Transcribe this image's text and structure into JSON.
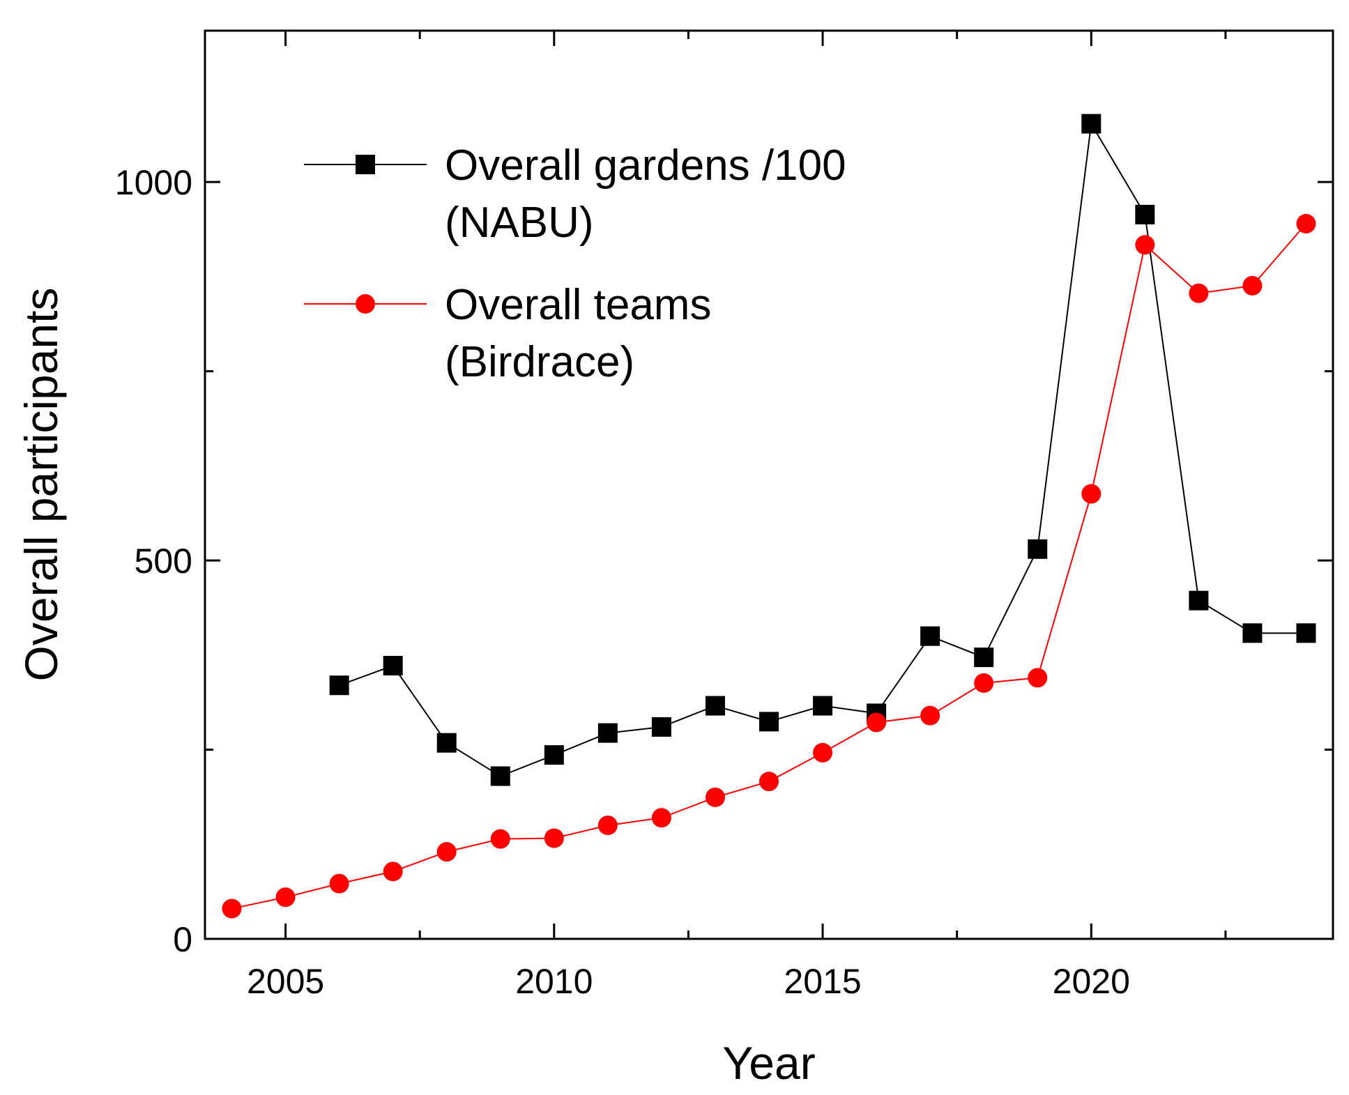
{
  "chart_data": {
    "type": "line",
    "xlabel": "Year",
    "ylabel": "Overall participants",
    "xlim": [
      2003.5,
      2024.5
    ],
    "ylim": [
      0,
      1200
    ],
    "x_major_ticks": [
      2005,
      2010,
      2015,
      2020
    ],
    "x_minor_ticks": [
      2007.5,
      2012.5,
      2017.5,
      2022.5
    ],
    "y_major_ticks": [
      0,
      500,
      1000
    ],
    "y_minor_ticks": [
      250,
      750
    ],
    "grid": false,
    "legend_position": "top-left",
    "series": [
      {
        "name_lines": [
          "Overall gardens /100",
          "(NABU)"
        ],
        "color": "#000000",
        "marker": "square",
        "points": [
          {
            "x": 2006,
            "y": 335
          },
          {
            "x": 2007,
            "y": 361
          },
          {
            "x": 2008,
            "y": 259
          },
          {
            "x": 2009,
            "y": 215
          },
          {
            "x": 2010,
            "y": 243
          },
          {
            "x": 2011,
            "y": 272
          },
          {
            "x": 2012,
            "y": 280
          },
          {
            "x": 2013,
            "y": 308
          },
          {
            "x": 2014,
            "y": 287
          },
          {
            "x": 2015,
            "y": 308
          },
          {
            "x": 2016,
            "y": 298
          },
          {
            "x": 2017,
            "y": 400
          },
          {
            "x": 2018,
            "y": 372
          },
          {
            "x": 2019,
            "y": 515
          },
          {
            "x": 2020,
            "y": 1077
          },
          {
            "x": 2021,
            "y": 957
          },
          {
            "x": 2022,
            "y": 447
          },
          {
            "x": 2023,
            "y": 404
          },
          {
            "x": 2024,
            "y": 404
          }
        ]
      },
      {
        "name_lines": [
          "Overall teams",
          "(Birdrace)"
        ],
        "color": "#ff0000",
        "marker": "circle",
        "points": [
          {
            "x": 2004,
            "y": 40
          },
          {
            "x": 2005,
            "y": 55
          },
          {
            "x": 2006,
            "y": 73
          },
          {
            "x": 2007,
            "y": 89
          },
          {
            "x": 2008,
            "y": 115
          },
          {
            "x": 2009,
            "y": 132
          },
          {
            "x": 2010,
            "y": 133
          },
          {
            "x": 2011,
            "y": 150
          },
          {
            "x": 2012,
            "y": 160
          },
          {
            "x": 2013,
            "y": 187
          },
          {
            "x": 2014,
            "y": 208
          },
          {
            "x": 2015,
            "y": 246
          },
          {
            "x": 2016,
            "y": 286
          },
          {
            "x": 2017,
            "y": 295
          },
          {
            "x": 2018,
            "y": 338
          },
          {
            "x": 2019,
            "y": 345
          },
          {
            "x": 2020,
            "y": 588
          },
          {
            "x": 2021,
            "y": 917
          },
          {
            "x": 2022,
            "y": 853
          },
          {
            "x": 2023,
            "y": 863
          },
          {
            "x": 2024,
            "y": 945
          }
        ]
      }
    ]
  }
}
